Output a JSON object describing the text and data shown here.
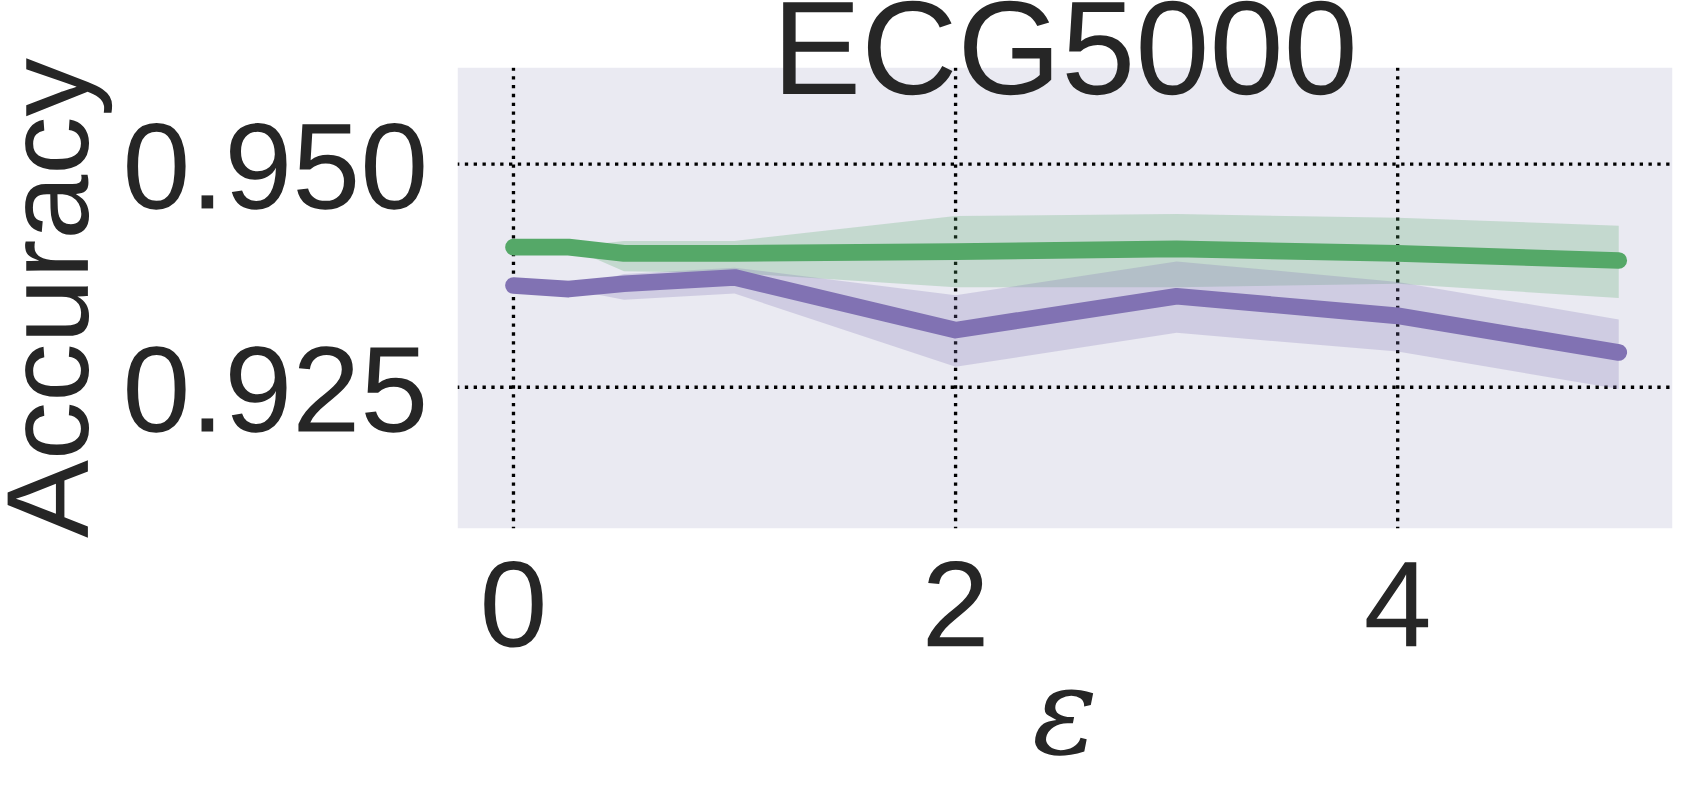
{
  "chart_data": {
    "type": "line",
    "title": "ECG5000",
    "xlabel": "ε",
    "ylabel": "Accuracy",
    "x": [
      0,
      0.25,
      0.5,
      1,
      2,
      3,
      4,
      5
    ],
    "series": [
      {
        "color": "#55a868",
        "values": [
          0.9407,
          0.9407,
          0.94,
          0.94,
          0.9402,
          0.9405,
          0.94,
          0.9392
        ],
        "lower": [
          0.9407,
          0.9407,
          0.938,
          0.9378,
          0.9362,
          0.9362,
          0.9366,
          0.935
        ],
        "upper": [
          0.9407,
          0.9407,
          0.9414,
          0.9414,
          0.9442,
          0.9444,
          0.944,
          0.9431
        ]
      },
      {
        "color": "#8172b3",
        "values": [
          0.9364,
          0.936,
          0.9366,
          0.9373,
          0.9314,
          0.9352,
          0.933,
          0.9289
        ],
        "lower": [
          0.9364,
          0.936,
          0.9348,
          0.9355,
          0.9273,
          0.9311,
          0.929,
          0.9248
        ],
        "upper": [
          0.9364,
          0.936,
          0.9377,
          0.9384,
          0.9353,
          0.9391,
          0.9368,
          0.9326
        ]
      }
    ],
    "xlim": [
      -0.26,
      5.25
    ],
    "ylim": [
      0.909,
      0.961
    ],
    "xticks": [
      0,
      2,
      4
    ],
    "yticks": [
      {
        "value": 0.925,
        "label": "0.925"
      },
      {
        "value": 0.95,
        "label": "0.950"
      }
    ],
    "grid": true,
    "legend": false,
    "line_style": "solid"
  }
}
